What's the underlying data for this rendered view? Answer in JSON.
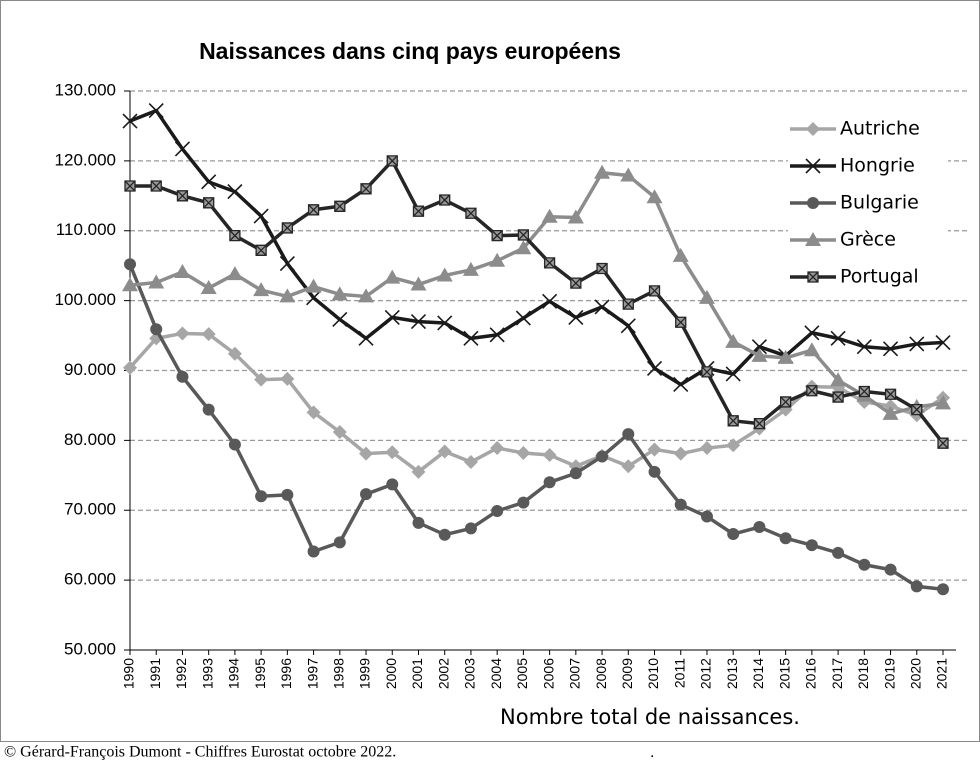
{
  "chart_data": {
    "type": "line",
    "title": "Naissances dans cinq pays européens",
    "x_label": "Nombre total de naissances.",
    "footer": "© Gérard-François Dumont - Chiffres Eurostat octobre 2022.",
    "footer_mark": ".",
    "categories": [
      "1990",
      "1991",
      "1992",
      "1993",
      "1994",
      "1995",
      "1996",
      "1997",
      "1998",
      "1999",
      "2000",
      "2001",
      "2002",
      "2003",
      "2004",
      "2005",
      "2006",
      "2007",
      "2008",
      "2009",
      "2010",
      "2011",
      "2012",
      "2013",
      "2014",
      "2015",
      "2016",
      "2017",
      "2018",
      "2019",
      "2020",
      "2021"
    ],
    "ylim": [
      50000,
      130000
    ],
    "yticks": [
      {
        "value": 50000,
        "label": "50.000"
      },
      {
        "value": 60000,
        "label": "60.000"
      },
      {
        "value": 70000,
        "label": "70.000"
      },
      {
        "value": 80000,
        "label": "80.000"
      },
      {
        "value": 90000,
        "label": "90.000"
      },
      {
        "value": 100000,
        "label": "100.000"
      },
      {
        "value": 110000,
        "label": "110.000"
      },
      {
        "value": 120000,
        "label": "120.000"
      },
      {
        "value": 130000,
        "label": "130.000"
      }
    ],
    "grid": true,
    "legend": "top-right",
    "series": [
      {
        "name": "Autriche",
        "color": "#a6a6a6",
        "marker": "diamond",
        "values": [
          90400,
          94600,
          95300,
          95200,
          92400,
          88700,
          88800,
          84000,
          81200,
          78100,
          78300,
          75500,
          78400,
          76900,
          78900,
          78200,
          77900,
          76300,
          77800,
          76300,
          78700,
          78100,
          78900,
          79300,
          81700,
          84400,
          87700,
          87600,
          85500,
          84900,
          83600,
          86100
        ]
      },
      {
        "name": "Hongrie",
        "color": "#1a1a1a",
        "marker": "x",
        "values": [
          125700,
          127200,
          121700,
          117000,
          115600,
          112100,
          105300,
          100400,
          97300,
          94600,
          97600,
          97000,
          96800,
          94600,
          95100,
          97500,
          99900,
          97600,
          99100,
          96400,
          90300,
          88000,
          90300,
          89500,
          93400,
          92100,
          95400,
          94600,
          93400,
          93100,
          93800,
          94000
        ]
      },
      {
        "name": "Bulgarie",
        "color": "#595959",
        "marker": "circle",
        "values": [
          105200,
          95900,
          89100,
          84400,
          79400,
          72000,
          72200,
          64100,
          65400,
          72300,
          73700,
          68200,
          66500,
          67400,
          69900,
          71100,
          74000,
          75300,
          77700,
          80900,
          75500,
          70800,
          69100,
          66600,
          67600,
          66000,
          65000,
          63900,
          62200,
          61500,
          59100,
          58700
        ]
      },
      {
        "name": "Grèce",
        "color": "#8c8c8c",
        "marker": "triangle",
        "values": [
          102200,
          102600,
          104100,
          101800,
          103800,
          101500,
          100600,
          102000,
          100900,
          100600,
          103300,
          102300,
          103600,
          104400,
          105700,
          107500,
          112000,
          111900,
          118300,
          117900,
          114800,
          106400,
          100400,
          94100,
          92100,
          91800,
          92900,
          88600,
          86400,
          83800,
          84800,
          85300
        ]
      },
      {
        "name": "Portugal",
        "color": "#262626",
        "marker": "square",
        "values": [
          116400,
          116400,
          115000,
          114000,
          109300,
          107200,
          110400,
          113000,
          113500,
          116000,
          120000,
          112800,
          114400,
          112500,
          109300,
          109400,
          105400,
          102500,
          104600,
          99500,
          101400,
          96900,
          89800,
          82800,
          82400,
          85500,
          87100,
          86200,
          87000,
          86600,
          84400,
          79600
        ]
      }
    ]
  }
}
